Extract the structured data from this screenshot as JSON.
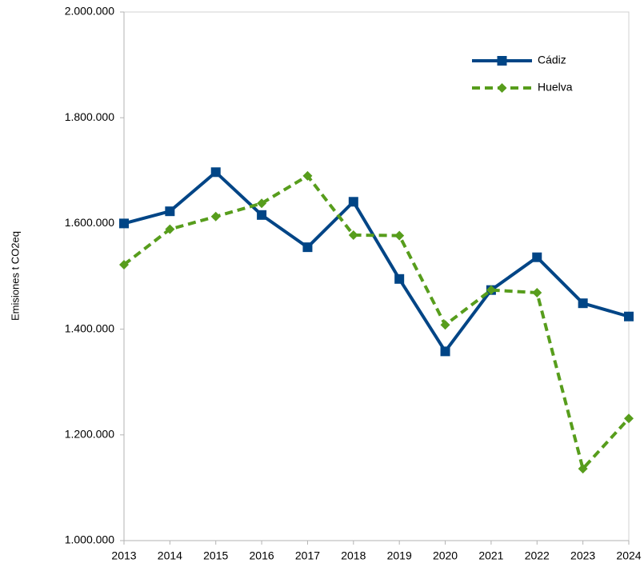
{
  "chart_data": {
    "type": "line",
    "y_label": "Emisiones t CO2eq",
    "categories": [
      "2013",
      "2014",
      "2015",
      "2016",
      "2017",
      "2018",
      "2019",
      "2020",
      "2021",
      "2022",
      "2023",
      "2024"
    ],
    "series": [
      {
        "name": "Cádiz",
        "color": "#004586",
        "dashed": false,
        "marker": "square",
        "values": [
          1600000,
          1623000,
          1697000,
          1616000,
          1555000,
          1641000,
          1495000,
          1358000,
          1474000,
          1536000,
          1449000,
          1424000
        ]
      },
      {
        "name": "Huelva",
        "color": "#579d1c",
        "dashed": true,
        "marker": "diamond",
        "values": [
          1522000,
          1589000,
          1613000,
          1638000,
          1690000,
          1578000,
          1577000,
          1408000,
          1474000,
          1469000,
          1136000,
          1231000
        ]
      }
    ],
    "ylim": [
      1000000,
      2000000
    ],
    "yticks": [
      {
        "value": 1000000,
        "label": "1.000.000"
      },
      {
        "value": 1200000,
        "label": "1.200.000"
      },
      {
        "value": 1400000,
        "label": "1.400.000"
      },
      {
        "value": 1600000,
        "label": "1.600.000"
      },
      {
        "value": 1800000,
        "label": "1.800.000"
      },
      {
        "value": 2000000,
        "label": "2.000.000"
      }
    ],
    "grid": false,
    "legend_position": "top-right"
  }
}
